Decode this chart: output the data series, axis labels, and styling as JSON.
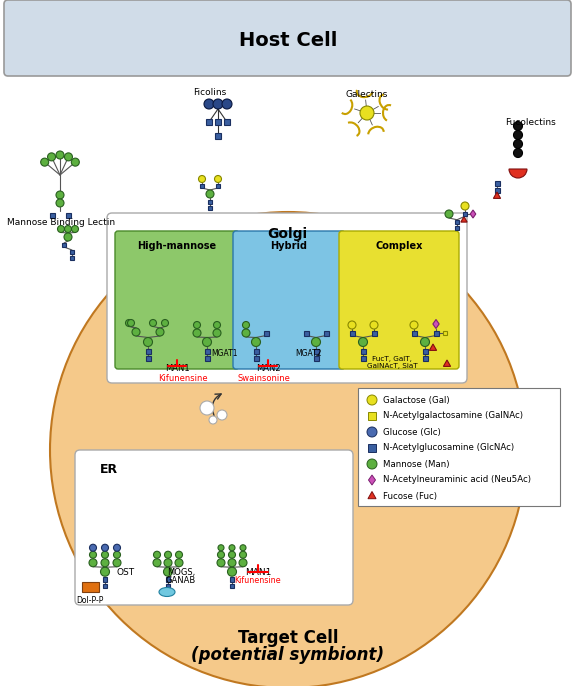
{
  "title": "Host Cell",
  "subtitle": "Target Cell\n(potential symbiont)",
  "golgi_label": "Golgi",
  "er_label": "ER",
  "host_cell_color": "#d0dce8",
  "target_cell_color": "#f5c98a",
  "high_mannose_color": "#8dc86a",
  "hybrid_color": "#7dc4e4",
  "complex_color": "#e8e030",
  "mannose_color": "#5db040",
  "glcnac_color": "#3a5fa0",
  "glucose_color": "#4a6ab0",
  "galactose_color": "#e8e020",
  "galnac_color": "#e8e020",
  "fucose_color": "#e03020",
  "neusac_color": "#cc50b8",
  "legend_items": [
    {
      "label": "Galactose (Gal)",
      "shape": "circle",
      "color": "#e8e020",
      "edgecolor": "#888800"
    },
    {
      "label": "N-Acetylgalactosamine (GalNAc)",
      "shape": "square",
      "color": "#e8e020",
      "edgecolor": "#888800"
    },
    {
      "label": "Glucose (Glc)",
      "shape": "circle",
      "color": "#4a6ab0",
      "edgecolor": "#1a2f60"
    },
    {
      "label": "N-Acetylglucosamine (GlcNAc)",
      "shape": "square",
      "color": "#3a5fa0",
      "edgecolor": "#1a2f60"
    },
    {
      "label": "Mannose (Man)",
      "shape": "circle",
      "color": "#5db040",
      "edgecolor": "#2a6020"
    },
    {
      "label": "N-Acetylneuraminic acid (Neu5Ac)",
      "shape": "diamond",
      "color": "#cc50b8",
      "edgecolor": "#7a2070"
    },
    {
      "label": "Fucose (Fuc)",
      "shape": "triangle",
      "color": "#e03020",
      "edgecolor": "#801010"
    }
  ],
  "section_labels": [
    "High-mannose",
    "Hybrid",
    "Complex"
  ],
  "dol_label": "Dol-P-P"
}
